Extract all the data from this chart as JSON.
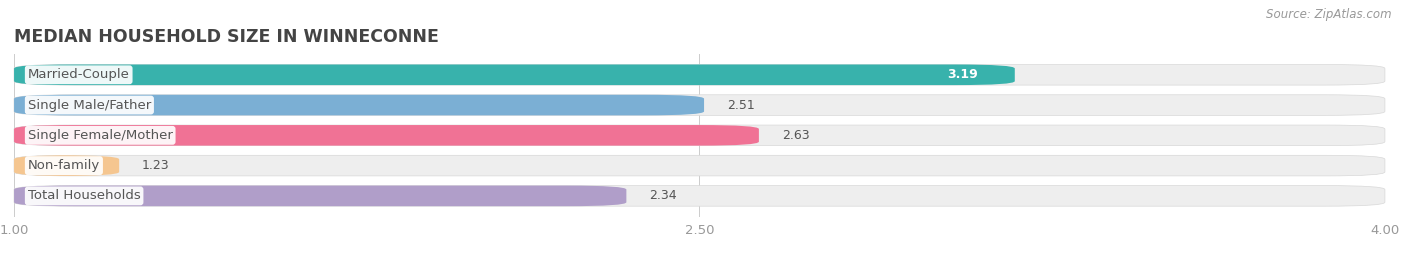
{
  "title": "MEDIAN HOUSEHOLD SIZE IN WINNECONNE",
  "source": "Source: ZipAtlas.com",
  "categories": [
    "Married-Couple",
    "Single Male/Father",
    "Single Female/Mother",
    "Non-family",
    "Total Households"
  ],
  "values": [
    3.19,
    2.51,
    2.63,
    1.23,
    2.34
  ],
  "bar_colors": [
    "#38b2ac",
    "#7bafd4",
    "#f07295",
    "#f5c690",
    "#b09ec9"
  ],
  "bar_bg_color": "#eeeeee",
  "xlim": [
    1.0,
    4.0
  ],
  "xtick_positions": [
    1.0,
    2.5,
    4.0
  ],
  "xtick_labels": [
    "1.00",
    "2.50",
    "4.00"
  ],
  "label_fontsize": 9.5,
  "value_fontsize": 9.0,
  "title_fontsize": 12.5,
  "bar_height": 0.68,
  "bar_gap": 0.12,
  "background_color": "#ffffff",
  "label_bg_color": "#ffffff",
  "value_inside_color": "#ffffff",
  "value_outside_color": "#555555"
}
